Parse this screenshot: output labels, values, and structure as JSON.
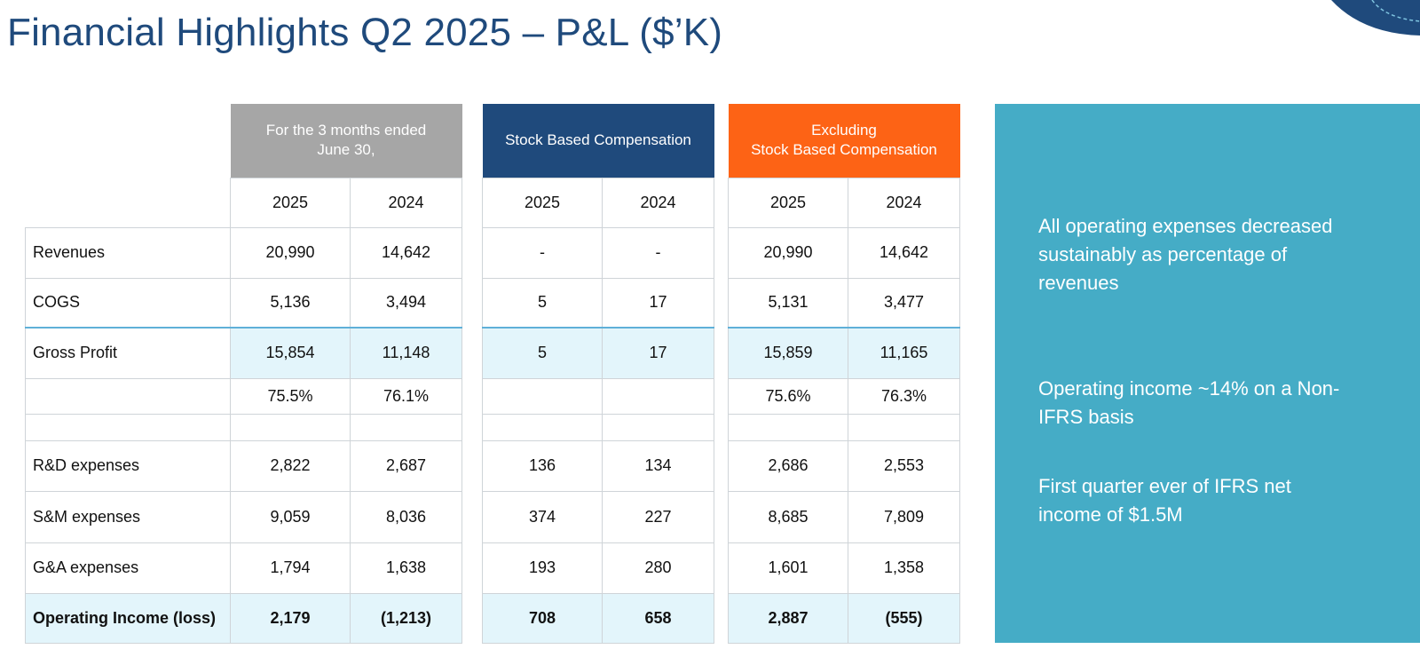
{
  "title": "Financial Highlights Q2 2025 – P&L ($’K)",
  "colors": {
    "title": "#1f4a7c",
    "header_grey": "#a6a6a6",
    "header_navy": "#1f4a7c",
    "header_orange": "#fd6315",
    "highlight_row": "#e3f5fb",
    "panel": "#45acc6"
  },
  "row_labels": [
    "Revenues",
    "COGS",
    "Gross Profit",
    "",
    "",
    "R&D expenses",
    "S&M expenses",
    "G&A expenses",
    "Operating Income (loss)"
  ],
  "blocks": [
    {
      "header": [
        "For the 3 months ended",
        "June 30,"
      ],
      "years": [
        "2025",
        "2024"
      ],
      "rows": [
        [
          "20,990",
          "14,642"
        ],
        [
          "5,136",
          "3,494"
        ],
        [
          "15,854",
          "11,148"
        ],
        [
          "75.5%",
          "76.1%"
        ],
        [
          "",
          ""
        ],
        [
          "2,822",
          "2,687"
        ],
        [
          "9,059",
          "8,036"
        ],
        [
          "1,794",
          "1,638"
        ],
        [
          "2,179",
          "(1,213)"
        ]
      ]
    },
    {
      "header": [
        "Stock Based Compensation"
      ],
      "years": [
        "2025",
        "2024"
      ],
      "rows": [
        [
          "-",
          "-"
        ],
        [
          "5",
          "17"
        ],
        [
          "5",
          "17"
        ],
        [
          "",
          ""
        ],
        [
          "",
          ""
        ],
        [
          "136",
          "134"
        ],
        [
          "374",
          "227"
        ],
        [
          "193",
          "280"
        ],
        [
          "708",
          "658"
        ]
      ]
    },
    {
      "header": [
        "Excluding",
        "Stock Based Compensation"
      ],
      "years": [
        "2025",
        "2024"
      ],
      "rows": [
        [
          "20,990",
          "14,642"
        ],
        [
          "5,131",
          "3,477"
        ],
        [
          "15,859",
          "11,165"
        ],
        [
          "75.6%",
          "76.3%"
        ],
        [
          "",
          ""
        ],
        [
          "2,686",
          "2,553"
        ],
        [
          "8,685",
          "7,809"
        ],
        [
          "1,601",
          "1,358"
        ],
        [
          "2,887",
          "(555)"
        ]
      ]
    }
  ],
  "panel": {
    "points": [
      "All operating expenses decreased sustainably as percentage of revenues",
      "Operating income ~14% on a Non-IFRS basis",
      "First quarter ever of IFRS net income of $1.5M"
    ]
  }
}
